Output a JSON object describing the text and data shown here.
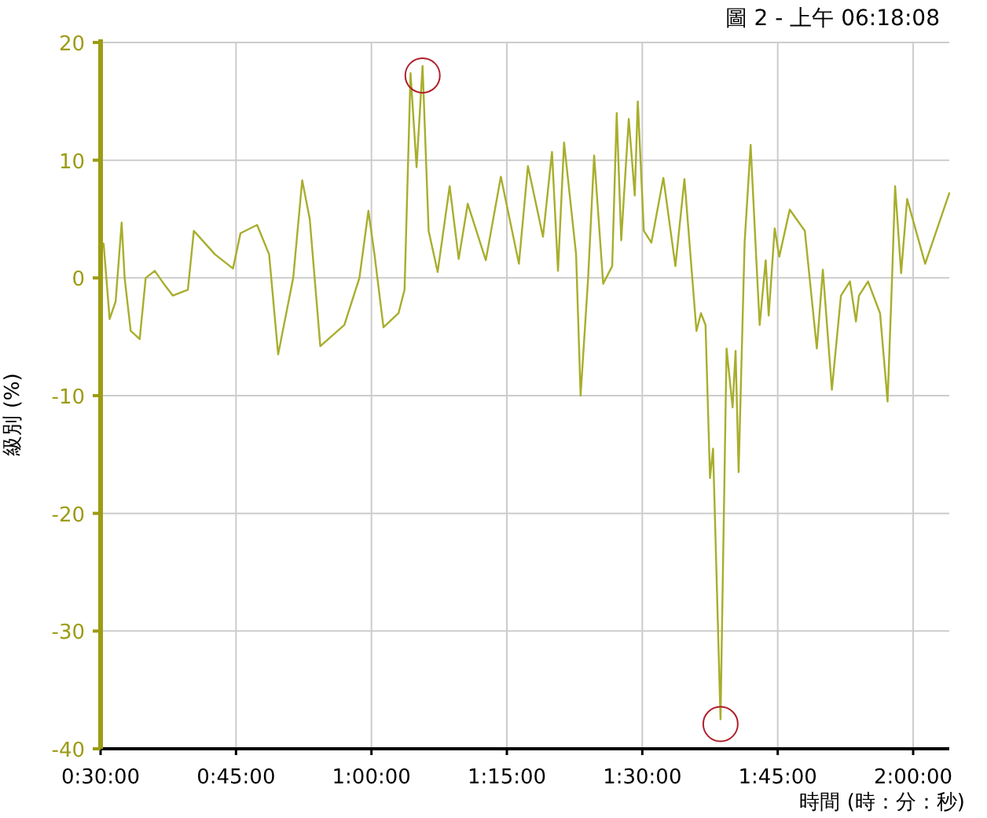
{
  "chart_data": {
    "type": "line",
    "title": "圖 2 - 上午 06:18:08",
    "xlabel": "時間 (時：分：秒)",
    "ylabel": "級別 (%)",
    "x": [
      0.5,
      0.5056,
      0.5167,
      0.5278,
      0.5389,
      0.5444,
      0.5556,
      0.5722,
      0.5833,
      0.6,
      0.6167,
      0.6333,
      0.6611,
      0.6722,
      0.7111,
      0.7444,
      0.7583,
      0.7889,
      0.8111,
      0.8278,
      0.8556,
      0.8722,
      0.8861,
      0.9056,
      0.95,
      0.9778,
      0.9944,
      1.0056,
      1.0222,
      1.05,
      1.0611,
      1.0722,
      1.0833,
      1.0944,
      1.1056,
      1.1222,
      1.1444,
      1.1611,
      1.1778,
      1.2111,
      1.2389,
      1.2722,
      1.2889,
      1.3167,
      1.3333,
      1.3444,
      1.3556,
      1.3778,
      1.3861,
      1.4,
      1.4111,
      1.4278,
      1.4444,
      1.4528,
      1.4611,
      1.475,
      1.4861,
      1.4917,
      1.5028,
      1.5167,
      1.5389,
      1.5611,
      1.5778,
      1.6,
      1.6083,
      1.6167,
      1.625,
      1.6306,
      1.6444,
      1.6556,
      1.6667,
      1.6722,
      1.6778,
      1.6889,
      1.7,
      1.7111,
      1.7167,
      1.7278,
      1.7333,
      1.7444,
      1.7528,
      1.7722,
      1.8,
      1.8222,
      1.8333,
      1.85,
      1.8667,
      1.8833,
      1.8944,
      1.9,
      1.9167,
      1.9389,
      1.9528,
      1.9611,
      1.9667,
      1.9778,
      1.9889,
      2.0222,
      2.0667
    ],
    "values": [
      3,
      2.9,
      -3.5,
      -2,
      4.7,
      0,
      -4.5,
      -5.2,
      0,
      0.6,
      -0.5,
      -1.5,
      -1,
      4,
      2,
      0.8,
      3.8,
      4.5,
      2,
      -6.5,
      0,
      8.3,
      5,
      -5.8,
      -4,
      0,
      5.7,
      2,
      -4.2,
      -3,
      -1,
      17.4,
      9.4,
      18,
      4,
      0.5,
      7.8,
      1.6,
      6.3,
      1.5,
      8.6,
      1.2,
      9.5,
      3.5,
      10.7,
      0.6,
      11.5,
      2,
      -10,
      0,
      10.4,
      -0.5,
      1,
      14,
      3.2,
      13.5,
      7,
      15,
      4,
      3,
      8.5,
      1,
      8.4,
      -4.5,
      -3,
      -4,
      -17,
      -14.5,
      -37.5,
      -6,
      -11,
      -6.2,
      -16.5,
      3,
      11.3,
      1,
      -4,
      1.5,
      -3.2,
      4.2,
      1.8,
      5.8,
      4,
      -6,
      0.7,
      -9.5,
      -1.5,
      -0.3,
      -3.7,
      -1.5,
      -0.3,
      -3,
      -10.5,
      0,
      7.8,
      0.4,
      6.7,
      1.2,
      7.2
    ],
    "color": "#a8ae2c",
    "xlim": [
      0.5,
      2.0667
    ],
    "xticks": [
      {
        "value": 0.5,
        "label": "0:30:00"
      },
      {
        "value": 0.75,
        "label": "0:45:00"
      },
      {
        "value": 1,
        "label": "1:00:00"
      },
      {
        "value": 1.25,
        "label": "1:15:00"
      },
      {
        "value": 1.5,
        "label": "1:30:00"
      },
      {
        "value": 1.75,
        "label": "1:45:00"
      },
      {
        "value": 2,
        "label": "2:00:00"
      }
    ],
    "ylim": [
      -40,
      20
    ],
    "yticks": [
      -40,
      -30,
      -20,
      -10,
      0,
      10,
      20
    ],
    "grid": true
  }
}
